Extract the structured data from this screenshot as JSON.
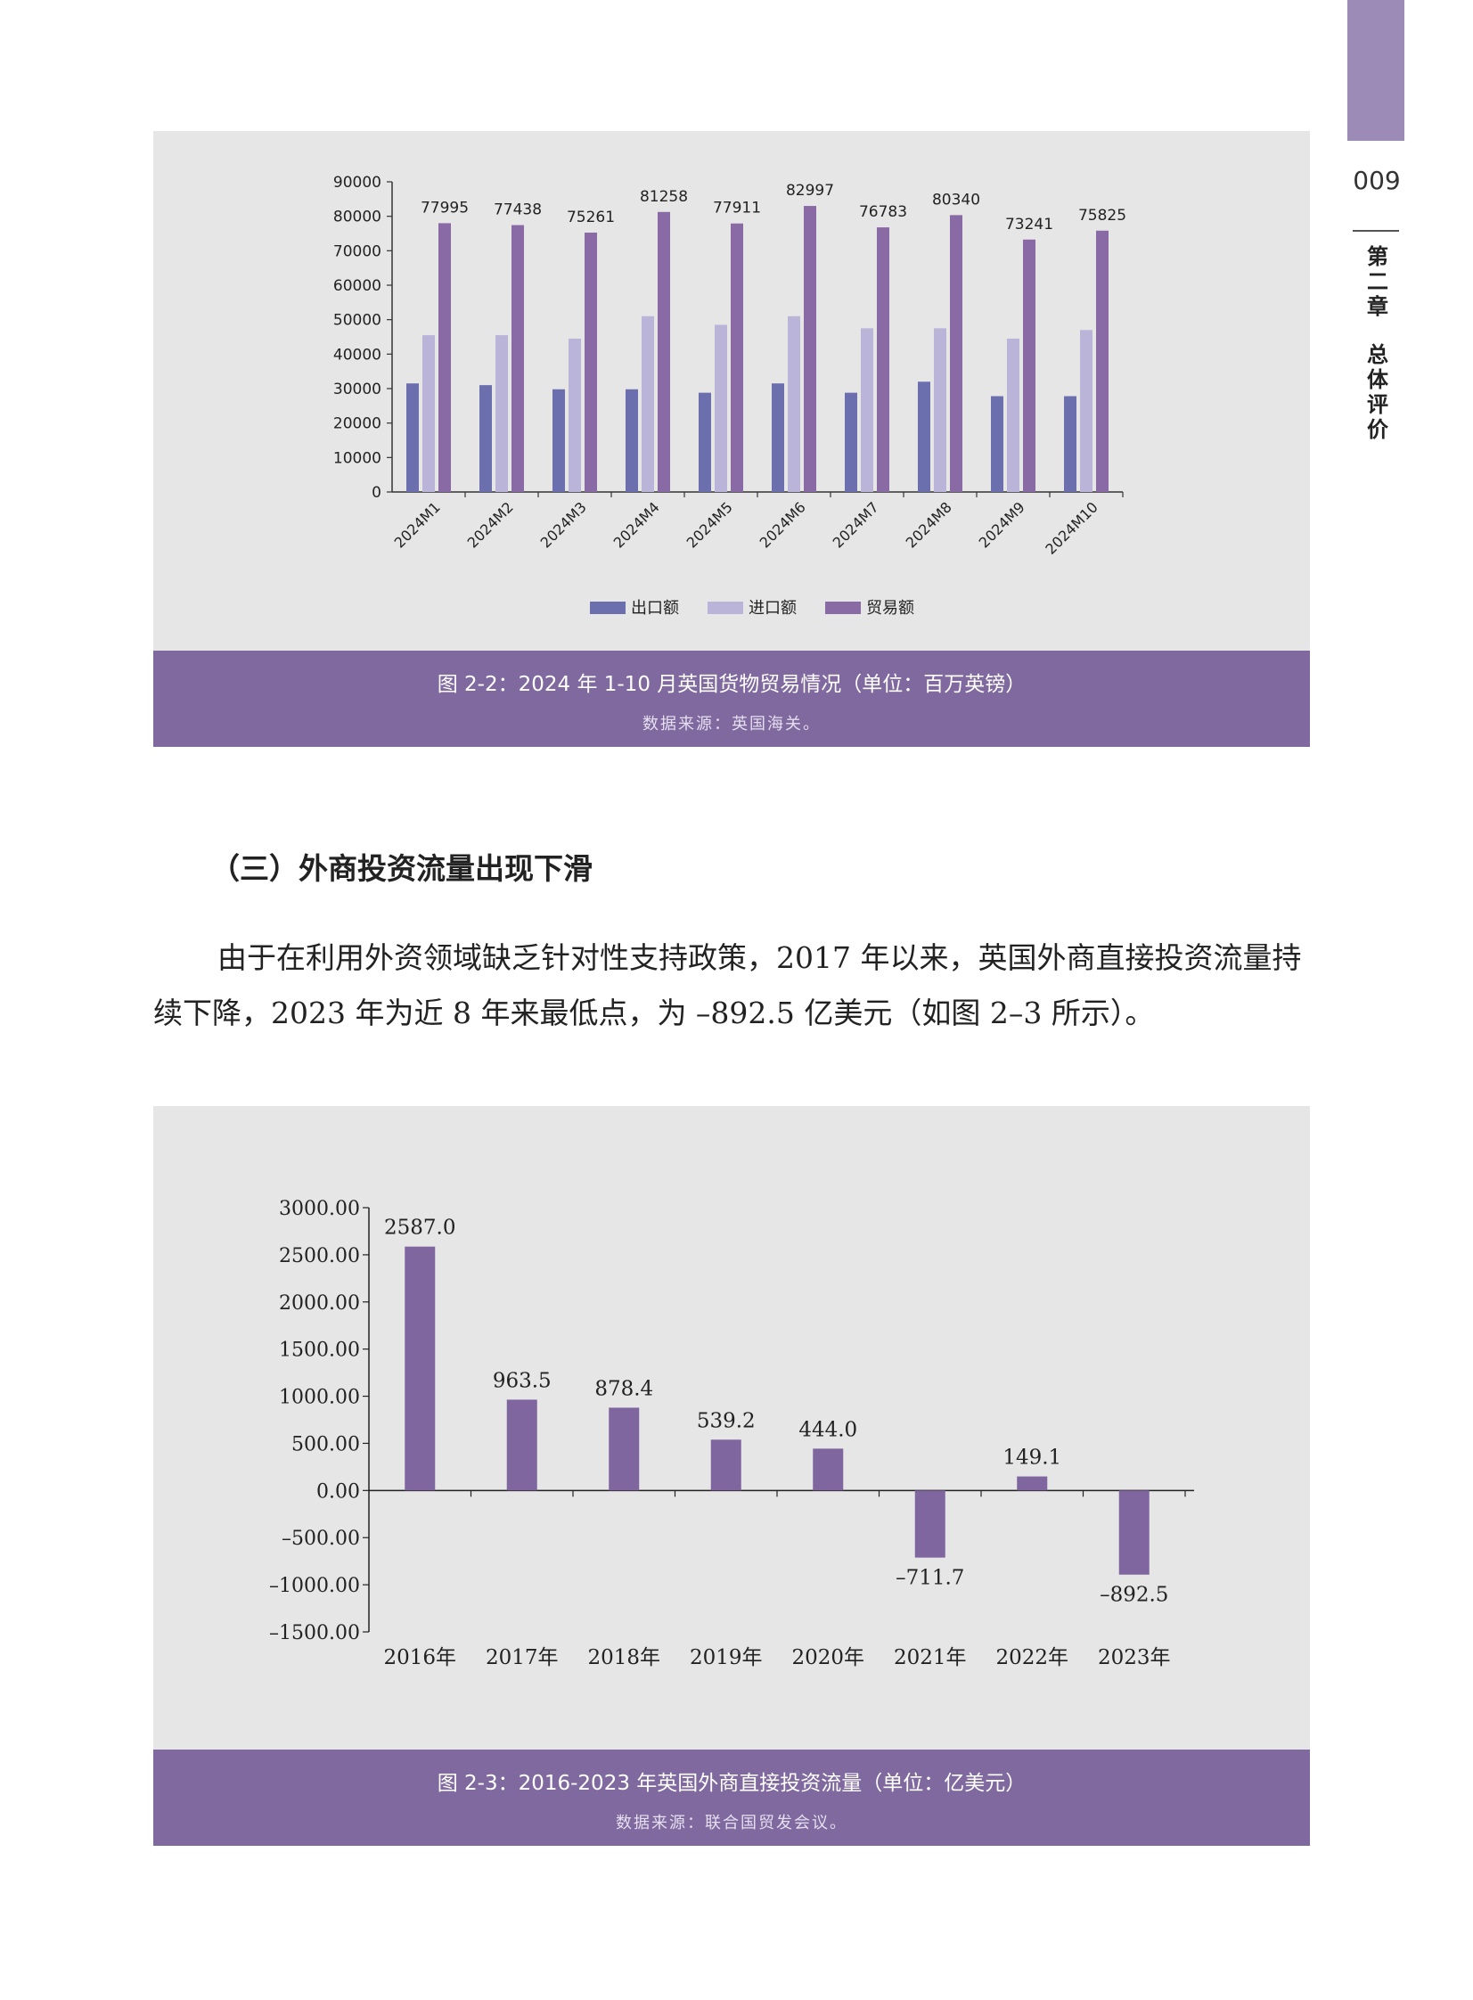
{
  "sidebar": {
    "page_number": "009",
    "chapter_chars": [
      "第",
      "二",
      "章"
    ],
    "section_chars": [
      "总",
      "体",
      "评",
      "价"
    ]
  },
  "figure1": {
    "caption": "图 2-2：2024 年 1-10 月英国货物贸易情况（单位：百万英镑）",
    "source": "数据来源：英国海关。"
  },
  "section_heading": "（三）外商投资流量出现下滑",
  "paragraph": "由于在利用外资领域缺乏针对性支持政策，2017 年以来，英国外商直接投资流量持续下降，2023 年为近 8 年来最低点，为 –892.5 亿美元（如图 2–3 所示）。",
  "figure2": {
    "caption": "图 2-3：2016-2023 年英国外商直接投资流量（单位：亿美元）",
    "source": "数据来源：联合国贸发会议。"
  },
  "chart_data": [
    {
      "type": "bar",
      "title": "",
      "categories": [
        "2024M1",
        "2024M2",
        "2024M3",
        "2024M4",
        "2024M5",
        "2024M6",
        "2024M7",
        "2024M8",
        "2024M9",
        "2024M10"
      ],
      "series": [
        {
          "name": "出口额",
          "color": "#6b6fae",
          "values": [
            31500,
            31000,
            29800,
            29800,
            28800,
            31500,
            28800,
            32000,
            27800,
            27800
          ]
        },
        {
          "name": "进口额",
          "color": "#bab4d9",
          "values": [
            45500,
            45500,
            44500,
            51000,
            48500,
            51000,
            47500,
            47500,
            44500,
            47000
          ]
        },
        {
          "name": "贸易额",
          "color": "#8a6aa5",
          "values": [
            77995,
            77438,
            75261,
            81258,
            77911,
            82997,
            76783,
            80340,
            73241,
            75825
          ],
          "labels": [
            "77995",
            "77438",
            "75261",
            "81258",
            "77911",
            "82997",
            "76783",
            "80340",
            "73241",
            "75825"
          ]
        }
      ],
      "yticks": [
        "90000",
        "80000",
        "70000",
        "60000",
        "50000",
        "40000",
        "30000",
        "20000",
        "10000",
        "0"
      ],
      "ylim": [
        0,
        90000
      ],
      "legend": "bottom"
    },
    {
      "type": "bar",
      "title": "",
      "categories": [
        "2016年",
        "2017年",
        "2018年",
        "2019年",
        "2020年",
        "2021年",
        "2022年",
        "2023年"
      ],
      "values": [
        2587.0,
        963.5,
        878.4,
        539.2,
        444.0,
        -711.7,
        149.1,
        -892.5
      ],
      "labels": [
        "2587.0",
        "963.5",
        "878.4",
        "539.2",
        "444.0",
        "–711.7",
        "149.1",
        "–892.5"
      ],
      "color": "#80669e",
      "yticks": [
        "3000.00",
        "2500.00",
        "2000.00",
        "1500.00",
        "1000.00",
        "500.00",
        "0.00",
        "–500.00",
        "–1000.00",
        "–1500.00"
      ],
      "ylim": [
        -1500,
        3000
      ]
    }
  ]
}
